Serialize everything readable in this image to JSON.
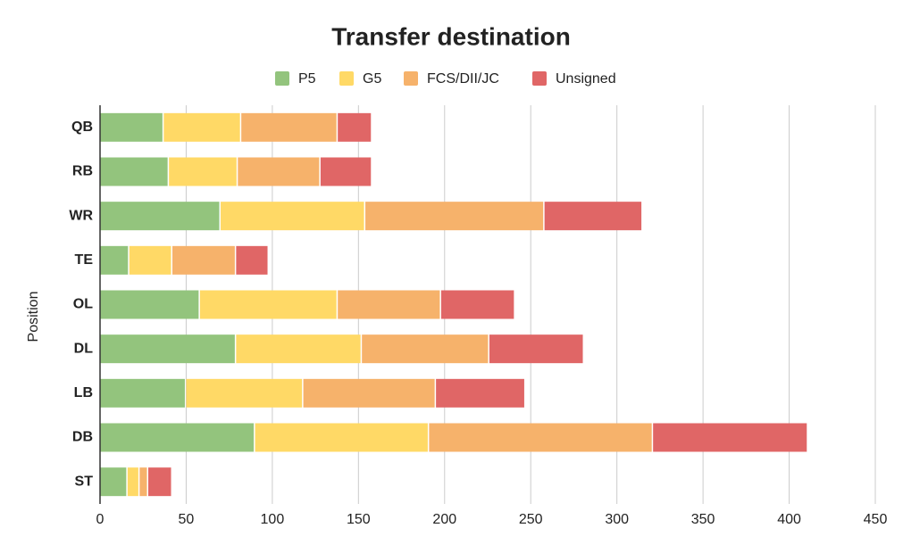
{
  "chart_data": {
    "type": "stacked-bar-horizontal",
    "title": "Transfer destination",
    "ylabel": "Position",
    "categories": [
      "QB",
      "RB",
      "WR",
      "TE",
      "OL",
      "DL",
      "LB",
      "DB",
      "ST"
    ],
    "series": [
      {
        "name": "P5",
        "color": "#93c47d",
        "values": [
          37,
          40,
          70,
          17,
          58,
          79,
          50,
          90,
          16
        ]
      },
      {
        "name": "G5",
        "color": "#ffd966",
        "values": [
          45,
          40,
          84,
          25,
          80,
          73,
          68,
          101,
          7
        ]
      },
      {
        "name": "FCS/DII/JC",
        "color": "#f6b26b",
        "values": [
          56,
          48,
          104,
          37,
          60,
          74,
          77,
          130,
          5
        ]
      },
      {
        "name": "Unsigned",
        "color": "#e06666",
        "values": [
          20,
          30,
          57,
          19,
          43,
          55,
          52,
          90,
          14
        ]
      }
    ],
    "xlim": [
      0,
      450
    ],
    "xticks": [
      0,
      50,
      100,
      150,
      200,
      250,
      300,
      350,
      400,
      450
    ],
    "grid": true,
    "legend": "top"
  }
}
